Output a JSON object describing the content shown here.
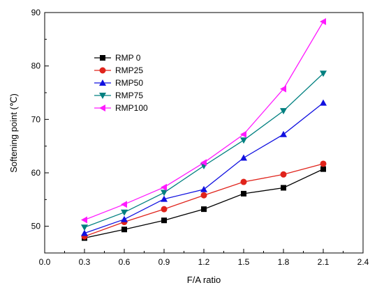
{
  "chart_data": {
    "type": "line",
    "xlabel": "F/A ratio",
    "ylabel": "Softening point (℃)",
    "xlim": [
      0.0,
      2.4
    ],
    "ylim": [
      45,
      90
    ],
    "xticks": [
      0.0,
      0.3,
      0.6,
      0.9,
      1.2,
      1.5,
      1.8,
      2.1,
      2.4
    ],
    "xtick_labels": [
      "0.0",
      "0.3",
      "0.6",
      "0.9",
      "1.2",
      "1.5",
      "1.8",
      "2.1",
      "2.4"
    ],
    "yticks": [
      50,
      60,
      70,
      80,
      90
    ],
    "ytick_labels": [
      "50",
      "60",
      "70",
      "80",
      "90"
    ],
    "grid": false,
    "legend_position": "top-left",
    "x": [
      0.3,
      0.6,
      0.9,
      1.2,
      1.5,
      1.8,
      2.1
    ],
    "series": [
      {
        "name": "RMP 0",
        "color": "#000000",
        "marker": "square",
        "values": [
          47.8,
          49.4,
          51.1,
          53.2,
          56.1,
          57.2,
          60.7
        ]
      },
      {
        "name": "RMP25",
        "color": "#e0231b",
        "marker": "circle",
        "values": [
          48.1,
          50.8,
          53.2,
          55.8,
          58.3,
          59.7,
          61.7
        ]
      },
      {
        "name": "RMP50",
        "color": "#1010e0",
        "marker": "triangle-up",
        "values": [
          48.7,
          51.3,
          55.1,
          56.9,
          62.8,
          67.2,
          73.1
        ]
      },
      {
        "name": "RMP75",
        "color": "#008080",
        "marker": "triangle-down",
        "values": [
          49.8,
          52.6,
          56.3,
          61.3,
          66.1,
          71.6,
          78.6
        ]
      },
      {
        "name": "RMP100",
        "color": "#ff1aff",
        "marker": "triangle-left",
        "values": [
          51.2,
          54.1,
          57.3,
          61.9,
          67.2,
          75.7,
          88.3
        ]
      }
    ]
  }
}
